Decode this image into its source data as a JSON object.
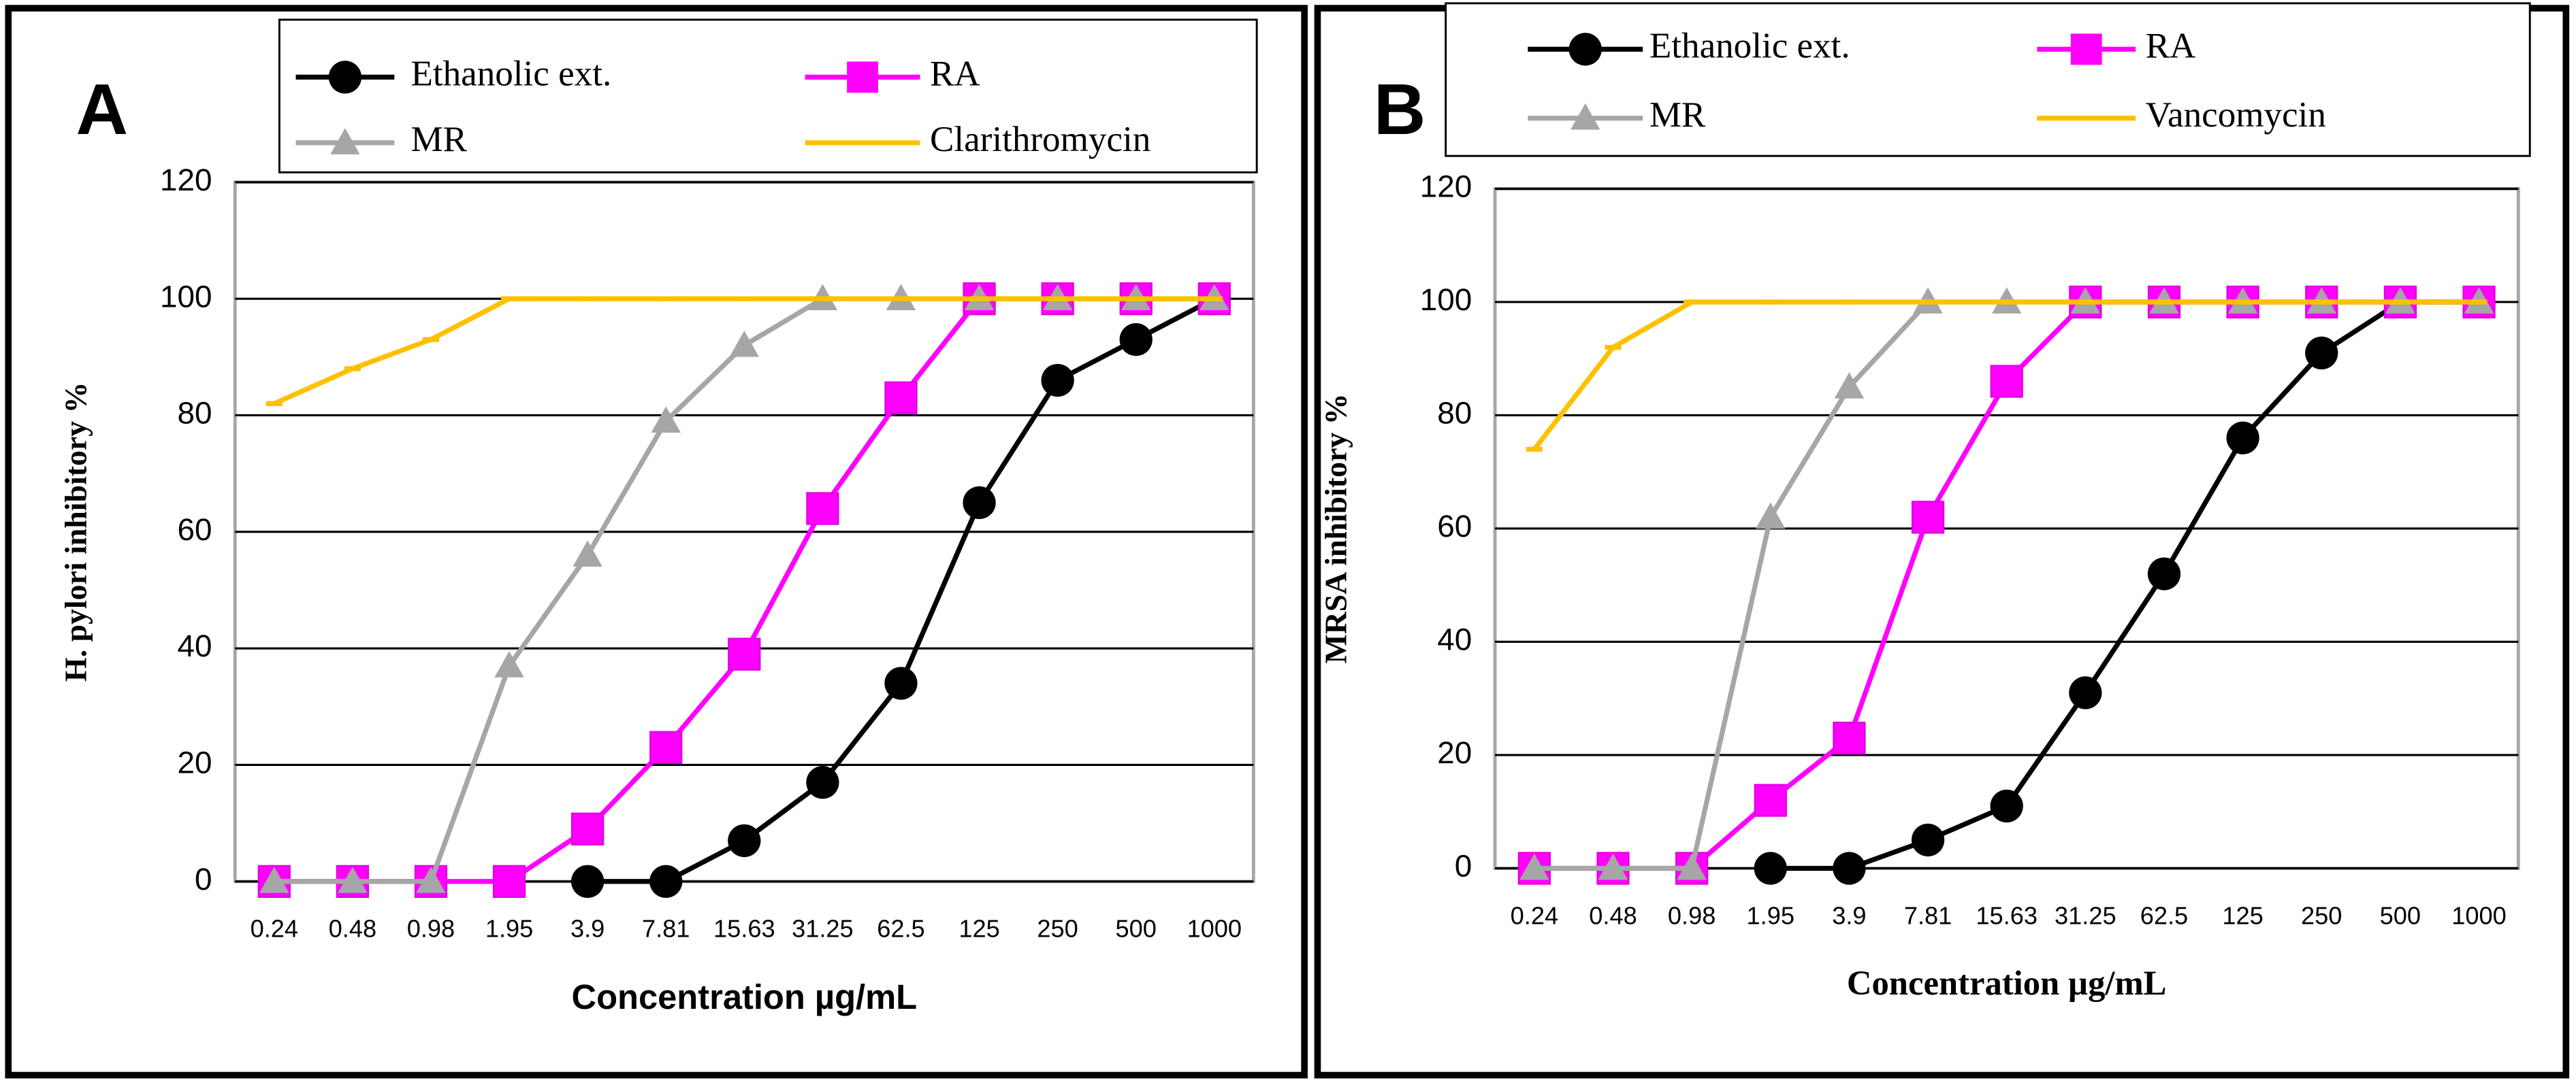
{
  "chart_data": [
    {
      "type": "line",
      "panel": "A",
      "ylabel": "H. pylori inhibitory %",
      "xlabel": "Concentration µg/mL",
      "categories": [
        "0.24",
        "0.48",
        "0.98",
        "1.95",
        "3.9",
        "7.81",
        "15.63",
        "31.25",
        "62.5",
        "125",
        "250",
        "500",
        "1000"
      ],
      "ylim": [
        0,
        120
      ],
      "yticks": [
        0,
        20,
        40,
        60,
        80,
        100,
        120
      ],
      "grid": true,
      "series": [
        {
          "name": "Ethanolic ext.",
          "color": "#000000",
          "marker": "circle",
          "values": [
            null,
            null,
            null,
            null,
            0,
            0,
            7,
            17,
            34,
            65,
            86,
            93,
            100
          ]
        },
        {
          "name": "RA",
          "color": "#ff00ff",
          "marker": "square",
          "values": [
            0,
            0,
            0,
            0,
            9,
            23,
            39,
            64,
            83,
            100,
            100,
            100,
            100
          ]
        },
        {
          "name": "MR",
          "color": "#a6a6a6",
          "marker": "triangle",
          "values": [
            0,
            0,
            0,
            37,
            56,
            79,
            92,
            100,
            100,
            100,
            100,
            100,
            100
          ]
        },
        {
          "name": "Clarithromycin",
          "color": "#ffc000",
          "marker": "dash",
          "values": [
            82,
            88,
            93,
            100,
            100,
            100,
            100,
            100,
            100,
            100,
            100,
            100,
            100
          ]
        }
      ]
    },
    {
      "type": "line",
      "panel": "B",
      "ylabel": "MRSA  inhibitory %",
      "xlabel": "Concentration µg/mL",
      "categories": [
        "0.24",
        "0.48",
        "0.98",
        "1.95",
        "3.9",
        "7.81",
        "15.63",
        "31.25",
        "62.5",
        "125",
        "250",
        "500",
        "1000"
      ],
      "ylim": [
        0,
        120
      ],
      "yticks": [
        0,
        20,
        40,
        60,
        80,
        100,
        120
      ],
      "grid": true,
      "series": [
        {
          "name": "Ethanolic ext.",
          "color": "#000000",
          "marker": "circle",
          "values": [
            null,
            null,
            null,
            0,
            0,
            5,
            11,
            31,
            52,
            76,
            91,
            100,
            100
          ]
        },
        {
          "name": "RA",
          "color": "#ff00ff",
          "marker": "square",
          "values": [
            0,
            0,
            0,
            12,
            23,
            62,
            86,
            100,
            100,
            100,
            100,
            100,
            100
          ]
        },
        {
          "name": "MR",
          "color": "#a6a6a6",
          "marker": "triangle",
          "values": [
            0,
            0,
            0,
            62,
            85,
            100,
            100,
            100,
            100,
            100,
            100,
            100,
            100
          ]
        },
        {
          "name": "Vancomycin",
          "color": "#ffc000",
          "marker": "dash",
          "values": [
            74,
            92,
            100,
            100,
            100,
            100,
            100,
            100,
            100,
            100,
            100,
            100,
            100
          ]
        }
      ]
    }
  ]
}
